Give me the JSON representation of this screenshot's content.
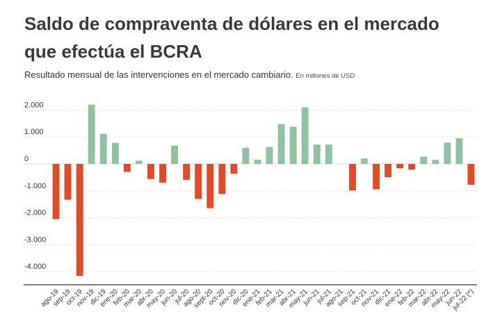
{
  "title": "Saldo de compraventa de dólares en el mercado que efectúa el BCRA",
  "subtitle": "Resultado  mensual de las intervenciones en el mercado cambiario.",
  "subtitle_unit": "En millones de USD",
  "colors": {
    "positive": "#8ec3a1",
    "negative": "#e34a26",
    "grid": "#dddddd",
    "axis": "#333333"
  },
  "chart_data": {
    "type": "bar",
    "title": "Saldo de compraventa de dólares en el mercado que efectúa el BCRA",
    "ylabel": "",
    "xlabel": "",
    "ylim": [
      -4500,
      2000
    ],
    "yticks": [
      {
        "value": 2000,
        "label": "2.000"
      },
      {
        "value": 1000,
        "label": "1.000"
      },
      {
        "value": 0,
        "label": "0"
      },
      {
        "value": -1000,
        "label": "-1.000"
      },
      {
        "value": -2000,
        "label": "-2.000"
      },
      {
        "value": -3000,
        "label": "-3.000"
      },
      {
        "value": -4000,
        "label": "-4.000"
      }
    ],
    "grid": true,
    "categories": [
      "ago-19",
      "sep-19",
      "oct-19",
      "nov-19",
      "dic-19",
      "ene-20",
      "feb-20",
      "mar-20",
      "abr-20",
      "may-20",
      "jun-20",
      "jul-20",
      "ago-20",
      "sept-20",
      "oct-20",
      "nov-20",
      "dic-20",
      "ene-21",
      "feb-21",
      "mar-21",
      "abr-21",
      "may-21",
      "jun-21",
      "jul-21",
      "ago-21",
      "sep-21",
      "oct-21",
      "nov-21",
      "dic-21",
      "ene-22",
      "feb-22",
      "mar-22",
      "abr-22",
      "may-22",
      "jun-22",
      "jul-22 (*)"
    ],
    "values": [
      -2050,
      -1330,
      -4150,
      2200,
      1120,
      780,
      -290,
      120,
      -560,
      -690,
      680,
      -590,
      -1300,
      -1640,
      -1110,
      -360,
      600,
      160,
      630,
      1480,
      1380,
      2100,
      720,
      720,
      0,
      -980,
      200,
      -940,
      -490,
      -160,
      -210,
      270,
      150,
      790,
      950,
      -770
    ]
  }
}
